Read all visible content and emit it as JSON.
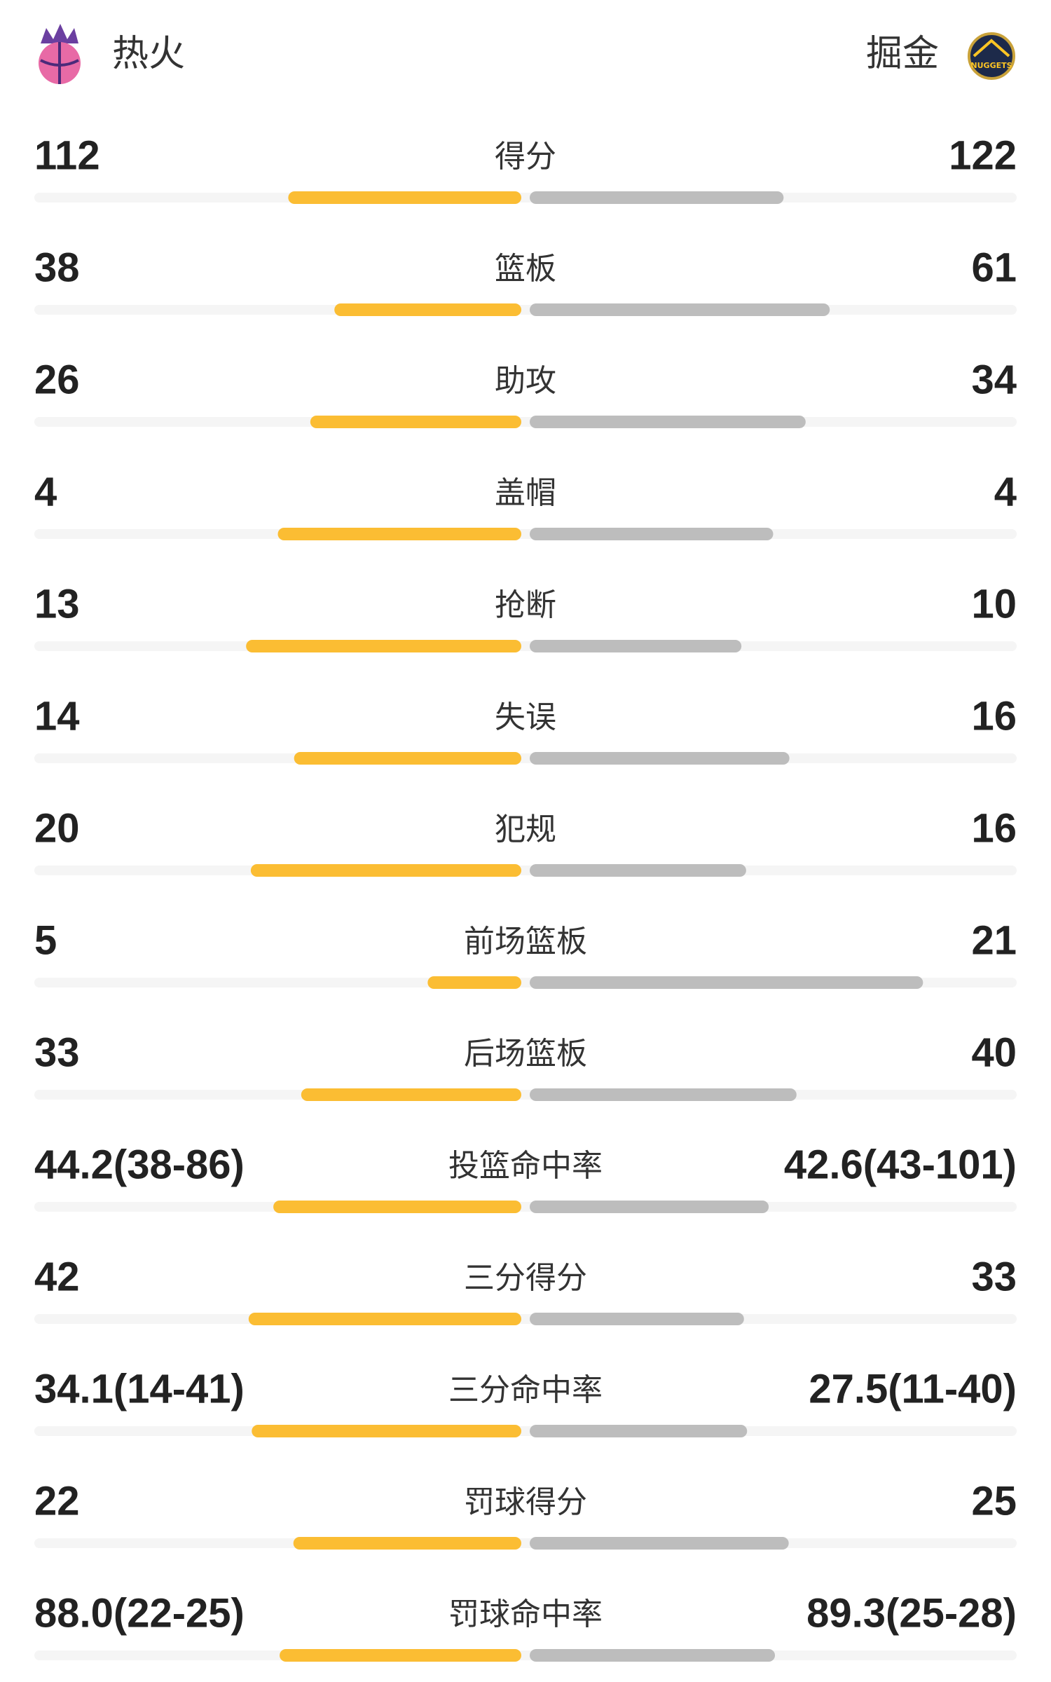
{
  "header": {
    "home_team": "热火",
    "away_team": "掘金",
    "away_logo_text": "NUGGETS"
  },
  "colors": {
    "home": "#fbbd33",
    "away": "#bdbdbd",
    "track": "#f5f5f5"
  },
  "rows": [
    {
      "name": "得分",
      "home": 112,
      "away": 122
    },
    {
      "name": "篮板",
      "home": 38,
      "away": 61
    },
    {
      "name": "助攻",
      "home": 26,
      "away": 34
    },
    {
      "name": "盖帽",
      "home": 4,
      "away": 4
    },
    {
      "name": "抢断",
      "home": 13,
      "away": 10
    },
    {
      "name": "失误",
      "home": 14,
      "away": 16
    },
    {
      "name": "犯规",
      "home": 20,
      "away": 16
    },
    {
      "name": "前场篮板",
      "home": 5,
      "away": 21
    },
    {
      "name": "后场篮板",
      "home": 33,
      "away": 40
    },
    {
      "name": "投篮命中率",
      "home": 44.2,
      "away": 42.6,
      "home_label": "44.2(38-86)",
      "away_label": "42.6(43-101)"
    },
    {
      "name": "三分得分",
      "home": 42,
      "away": 33
    },
    {
      "name": "三分命中率",
      "home": 34.1,
      "away": 27.5,
      "home_label": "34.1(14-41)",
      "away_label": "27.5(11-40)"
    },
    {
      "name": "罚球得分",
      "home": 22,
      "away": 25
    },
    {
      "name": "罚球命中率",
      "home": 88.0,
      "away": 89.3,
      "home_label": "88.0(22-25)",
      "away_label": "89.3(25-28)"
    }
  ]
}
